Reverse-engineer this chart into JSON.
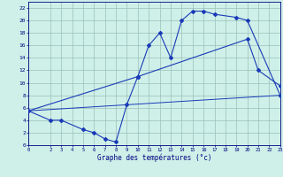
{
  "bg_color": "#cef0e8",
  "line_color": "#1a3ab8",
  "grid_color": "#9bbfba",
  "xlabel": "Graphe des températures (°c)",
  "xlim": [
    0,
    23
  ],
  "ylim": [
    0,
    23
  ],
  "yticks": [
    0,
    2,
    4,
    6,
    8,
    10,
    12,
    14,
    16,
    18,
    20,
    22
  ],
  "xticks": [
    0,
    2,
    3,
    4,
    5,
    6,
    7,
    8,
    9,
    10,
    11,
    12,
    13,
    14,
    15,
    16,
    17,
    18,
    19,
    20,
    21,
    22,
    23
  ],
  "line1_x": [
    0,
    10,
    11,
    12,
    13,
    14,
    15,
    16,
    17,
    19,
    20,
    23
  ],
  "line1_y": [
    5.5,
    11.0,
    16.0,
    18.0,
    14.0,
    20.0,
    21.5,
    21.5,
    21.0,
    20.5,
    20.0,
    8.0
  ],
  "line2_x": [
    0,
    2,
    3,
    5,
    6,
    7,
    8,
    9,
    10,
    20,
    21,
    23
  ],
  "line2_y": [
    5.5,
    4.0,
    4.0,
    2.5,
    2.0,
    1.0,
    0.5,
    6.5,
    11.0,
    17.0,
    12.0,
    9.5
  ],
  "line3_x": [
    0,
    23
  ],
  "line3_y": [
    5.5,
    8.0
  ]
}
